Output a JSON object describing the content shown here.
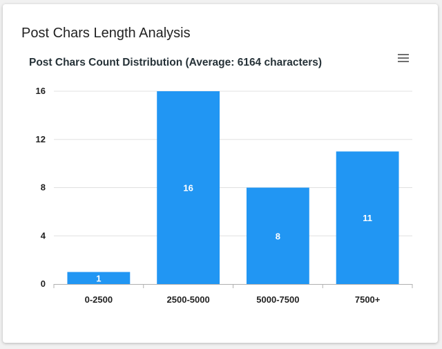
{
  "card": {
    "title": "Post Chars Length Analysis",
    "menu_icon": "hamburger-menu-icon"
  },
  "colors": {
    "bar": "#2196f3",
    "grid": "#e0e0e0",
    "axis": "#b0b0b0"
  },
  "chart_data": {
    "type": "bar",
    "title": "Post Chars Count Distribution (Average: 6164 characters)",
    "xlabel": "",
    "ylabel": "",
    "categories": [
      "0-2500",
      "2500-5000",
      "5000-7500",
      "7500+"
    ],
    "values": [
      1,
      16,
      8,
      11
    ],
    "ylim": [
      0,
      16
    ],
    "yticks": [
      0,
      4,
      8,
      12,
      16
    ],
    "data_labels": true,
    "grid": true,
    "legend": "none"
  }
}
